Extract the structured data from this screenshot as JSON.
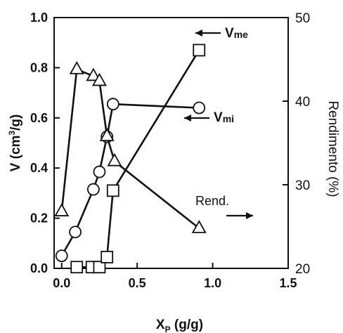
{
  "chart_data": {
    "type": "line",
    "x_axis": {
      "label_main": "X",
      "label_sub": "P",
      "label_rest": " (g/g)",
      "range": [
        -0.05,
        1.5
      ],
      "ticks": [
        "0.0",
        "0.5",
        "1.0",
        "1.5"
      ],
      "tick_values": [
        0,
        0.5,
        1.0,
        1.5
      ]
    },
    "y_left": {
      "label_pre": "V (cm",
      "label_sup": "3",
      "label_post": "/g)",
      "range": [
        0,
        1.0
      ],
      "ticks": [
        "0.0",
        "0.2",
        "0.4",
        "0.6",
        "0.8",
        "1.0"
      ],
      "tick_values": [
        0,
        0.2,
        0.4,
        0.6,
        0.8,
        1.0
      ]
    },
    "y_right": {
      "label": "Rendimento (%)",
      "range": [
        20,
        50
      ],
      "ticks": [
        "20",
        "30",
        "40",
        "50"
      ],
      "tick_values": [
        20,
        30,
        40,
        50
      ]
    },
    "series": [
      {
        "marker": "circle",
        "axis": "left",
        "x": [
          0.0,
          0.09,
          0.21,
          0.25,
          0.3,
          0.34,
          0.91
        ],
        "y": [
          0.05,
          0.145,
          0.315,
          0.385,
          0.525,
          0.655,
          0.64
        ]
      },
      {
        "marker": "square",
        "axis": "left",
        "x": [
          0.1,
          0.2,
          0.25,
          0.3,
          0.34,
          0.91
        ],
        "y": [
          0.005,
          0.005,
          0.005,
          0.045,
          0.31,
          0.87
        ]
      },
      {
        "marker": "triangle",
        "axis": "right",
        "x": [
          0.0,
          0.1,
          0.21,
          0.25,
          0.3,
          0.35,
          0.91
        ],
        "y": [
          26.8,
          43.8,
          43.0,
          42.4,
          35.8,
          32.8,
          24.8
        ]
      }
    ],
    "annotations": {
      "vme_main": "V",
      "vme_sub": "me",
      "vmi_main": "V",
      "vmi_sub": "mi",
      "rend": "Rend."
    }
  }
}
